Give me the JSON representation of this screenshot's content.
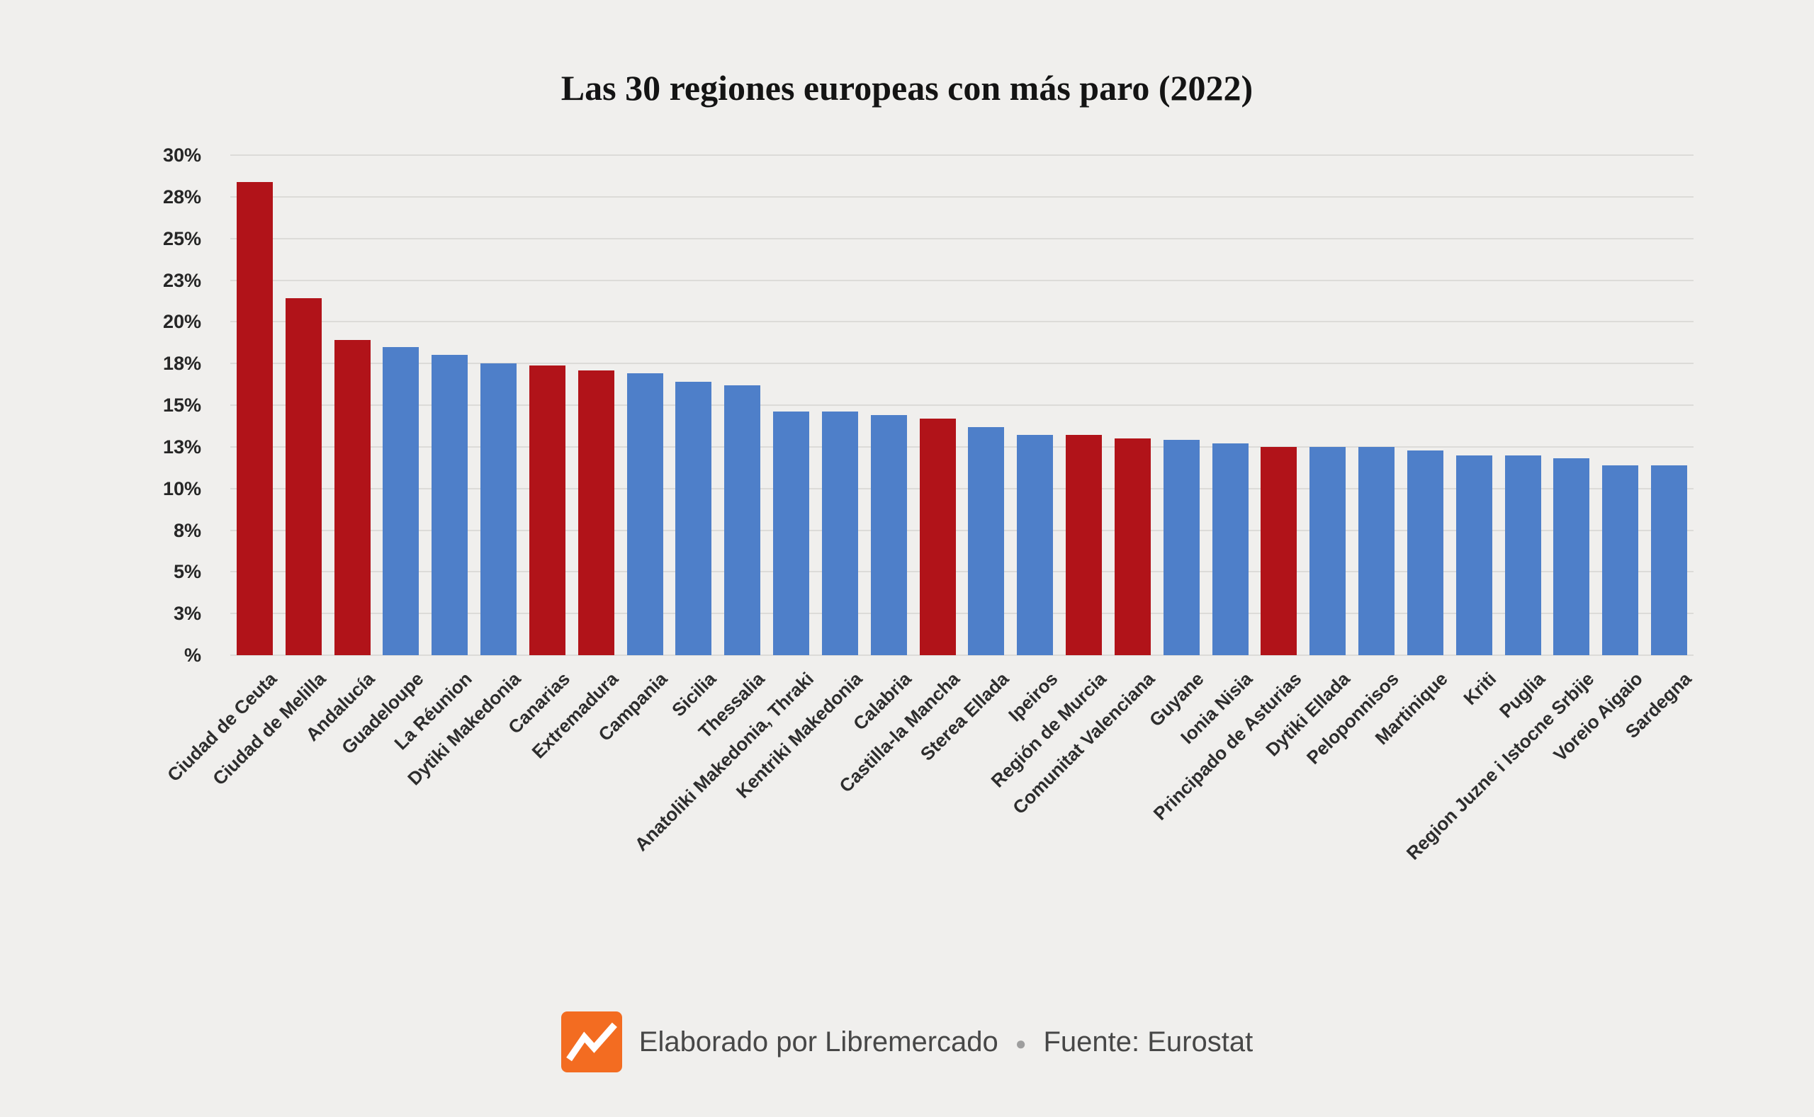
{
  "page": {
    "background_color": "#f0efed"
  },
  "chart_data": {
    "type": "bar",
    "title": "Las 30 regiones europeas con más paro (2022)",
    "xlabel": "",
    "ylabel": "",
    "ylim": [
      0,
      30
    ],
    "grid": true,
    "legend_position": "none",
    "value_unit": "%",
    "palette": {
      "spain_highlight": "#b11319",
      "default": "#4e7fc9"
    },
    "yticks": [
      {
        "value": 0,
        "label": "%"
      },
      {
        "value": 2.5,
        "label": "3%"
      },
      {
        "value": 5,
        "label": "5%"
      },
      {
        "value": 7.5,
        "label": "8%"
      },
      {
        "value": 10,
        "label": "10%"
      },
      {
        "value": 12.5,
        "label": "13%"
      },
      {
        "value": 15,
        "label": "15%"
      },
      {
        "value": 17.5,
        "label": "18%"
      },
      {
        "value": 20,
        "label": "20%"
      },
      {
        "value": 22.5,
        "label": "23%"
      },
      {
        "value": 25,
        "label": "25%"
      },
      {
        "value": 27.5,
        "label": "28%"
      },
      {
        "value": 30,
        "label": "30%"
      }
    ],
    "categories": [
      "Ciudad de Ceuta",
      "Ciudad de Melilla",
      "Andalucía",
      "Guadeloupe",
      "La Réunion",
      "Dytiki Makedonia",
      "Canarias",
      "Extremadura",
      "Campania",
      "Sicilia",
      "Thessalia",
      "Anatoliki Makedonia, Thraki",
      "Kentriki Makedonia",
      "Calabria",
      "Castilla-la Mancha",
      "Sterea Ellada",
      "Ipeiros",
      "Región de Murcia",
      "Comunitat Valenciana",
      "Guyane",
      "Ionia Nisia",
      "Principado de Asturias",
      "Dytiki Ellada",
      "Peloponnisos",
      "Martinique",
      "Kriti",
      "Puglia",
      "Region Juzne i Istocne Srbije",
      "Voreio Aigaio",
      "Sardegna"
    ],
    "values": [
      28.4,
      21.4,
      18.9,
      18.5,
      18.0,
      17.5,
      17.4,
      17.1,
      16.9,
      16.4,
      16.2,
      14.6,
      14.6,
      14.4,
      14.2,
      13.7,
      13.2,
      13.2,
      13.0,
      12.9,
      12.7,
      12.5,
      12.5,
      12.5,
      12.3,
      12.0,
      12.0,
      11.8,
      11.4,
      11.4
    ],
    "groups": [
      "spain_highlight",
      "spain_highlight",
      "spain_highlight",
      "default",
      "default",
      "default",
      "spain_highlight",
      "spain_highlight",
      "default",
      "default",
      "default",
      "default",
      "default",
      "default",
      "spain_highlight",
      "default",
      "default",
      "spain_highlight",
      "spain_highlight",
      "default",
      "default",
      "spain_highlight",
      "default",
      "default",
      "default",
      "default",
      "default",
      "default",
      "default",
      "default"
    ]
  },
  "footer": {
    "credit": "Elaborado por Libremercado",
    "separator": "●",
    "source": "Fuente: Eurostat",
    "logo": "libremercado-zigzag",
    "logo_color": "#f36c21"
  }
}
